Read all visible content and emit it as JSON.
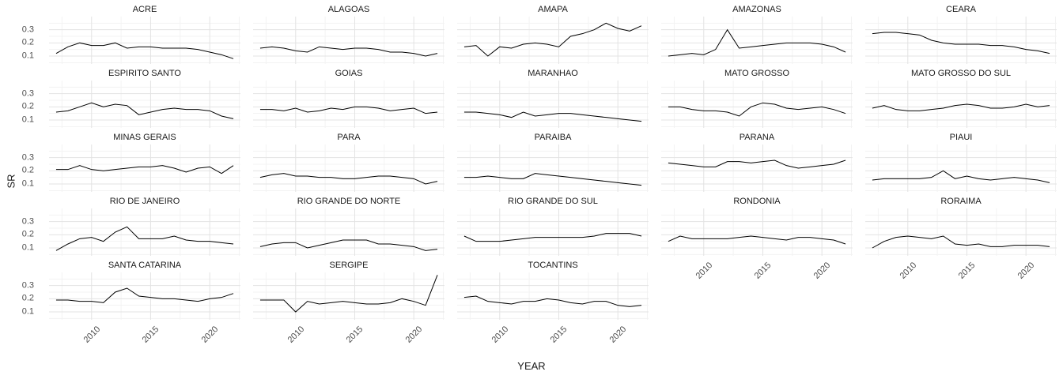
{
  "figure": {
    "y_axis_title": "SR",
    "x_axis_title": "YEAR"
  },
  "axes": {
    "y_tick_labels": [
      "0.3",
      "0.2",
      "0.1"
    ],
    "x_tick_labels": [
      "2010",
      "2015",
      "2020"
    ]
  },
  "chart_data": {
    "type": "line",
    "layout": "facet_wrap, 5 columns, 23 panels, shared axes, minimal theme, thin black line per panel",
    "xlabel": "YEAR",
    "ylabel": "SR",
    "x": [
      2007,
      2008,
      2009,
      2010,
      2011,
      2012,
      2013,
      2014,
      2015,
      2016,
      2017,
      2018,
      2019,
      2020,
      2021,
      2022
    ],
    "xlim": [
      2006.4,
      2022.6
    ],
    "ylim": [
      0.04,
      0.4
    ],
    "x_major_ticks": [
      2010,
      2015,
      2020
    ],
    "y_major_ticks": [
      0.1,
      0.2,
      0.3
    ],
    "x_minor_gridlines": [
      2007.5,
      2012.5,
      2017.5,
      2022.5
    ],
    "y_minor_gridlines": [
      0.05,
      0.15,
      0.25,
      0.35
    ],
    "grid": "major and minor, light gray on white",
    "line_color": "#000000",
    "tick_label_color": "#4d4d4d",
    "series": [
      {
        "name": "ACRE",
        "values": [
          0.12,
          0.17,
          0.2,
          0.18,
          0.18,
          0.2,
          0.16,
          0.17,
          0.17,
          0.16,
          0.16,
          0.16,
          0.15,
          0.13,
          0.11,
          0.08
        ]
      },
      {
        "name": "ALAGOAS",
        "values": [
          0.16,
          0.17,
          0.16,
          0.14,
          0.13,
          0.17,
          0.16,
          0.15,
          0.16,
          0.16,
          0.15,
          0.13,
          0.13,
          0.12,
          0.1,
          0.12
        ]
      },
      {
        "name": "AMAPA",
        "values": [
          0.17,
          0.18,
          0.1,
          0.17,
          0.16,
          0.19,
          0.2,
          0.19,
          0.17,
          0.25,
          0.27,
          0.3,
          0.35,
          0.31,
          0.29,
          0.33
        ]
      },
      {
        "name": "AMAZONAS",
        "values": [
          0.1,
          0.11,
          0.12,
          0.11,
          0.15,
          0.3,
          0.16,
          0.17,
          0.18,
          0.19,
          0.2,
          0.2,
          0.2,
          0.19,
          0.17,
          0.13
        ]
      },
      {
        "name": "CEARA",
        "values": [
          0.27,
          0.28,
          0.28,
          0.27,
          0.26,
          0.22,
          0.2,
          0.19,
          0.19,
          0.19,
          0.18,
          0.18,
          0.17,
          0.15,
          0.14,
          0.12
        ]
      },
      {
        "name": "ESPIRITO SANTO",
        "values": [
          0.16,
          0.17,
          0.2,
          0.23,
          0.2,
          0.22,
          0.21,
          0.14,
          0.16,
          0.18,
          0.19,
          0.18,
          0.18,
          0.17,
          0.13,
          0.11
        ]
      },
      {
        "name": "GOIAS",
        "values": [
          0.18,
          0.18,
          0.17,
          0.19,
          0.16,
          0.17,
          0.19,
          0.18,
          0.2,
          0.2,
          0.19,
          0.17,
          0.18,
          0.19,
          0.15,
          0.16
        ]
      },
      {
        "name": "MARANHAO",
        "values": [
          0.16,
          0.16,
          0.15,
          0.14,
          0.12,
          0.16,
          0.13,
          0.14,
          0.15,
          0.15,
          0.14,
          0.13,
          0.12,
          0.11,
          0.1,
          0.09
        ]
      },
      {
        "name": "MATO GROSSO",
        "values": [
          0.2,
          0.2,
          0.18,
          0.17,
          0.17,
          0.16,
          0.13,
          0.2,
          0.23,
          0.22,
          0.19,
          0.18,
          0.19,
          0.2,
          0.18,
          0.15
        ]
      },
      {
        "name": "MATO GROSSO DO SUL",
        "values": [
          0.19,
          0.21,
          0.18,
          0.17,
          0.17,
          0.18,
          0.19,
          0.21,
          0.22,
          0.21,
          0.19,
          0.19,
          0.2,
          0.22,
          0.2,
          0.21
        ]
      },
      {
        "name": "MINAS GERAIS",
        "values": [
          0.21,
          0.21,
          0.24,
          0.21,
          0.2,
          0.21,
          0.22,
          0.23,
          0.23,
          0.24,
          0.22,
          0.19,
          0.22,
          0.23,
          0.18,
          0.24
        ]
      },
      {
        "name": "PARA",
        "values": [
          0.15,
          0.17,
          0.18,
          0.16,
          0.16,
          0.15,
          0.15,
          0.14,
          0.14,
          0.15,
          0.16,
          0.16,
          0.15,
          0.14,
          0.1,
          0.12
        ]
      },
      {
        "name": "PARAIBA",
        "values": [
          0.15,
          0.15,
          0.16,
          0.15,
          0.14,
          0.14,
          0.18,
          0.17,
          0.16,
          0.15,
          0.14,
          0.13,
          0.12,
          0.11,
          0.1,
          0.09
        ]
      },
      {
        "name": "PARANA",
        "values": [
          0.26,
          0.25,
          0.24,
          0.23,
          0.23,
          0.27,
          0.27,
          0.26,
          0.27,
          0.28,
          0.24,
          0.22,
          0.23,
          0.24,
          0.25,
          0.28
        ]
      },
      {
        "name": "PIAUI",
        "values": [
          0.13,
          0.14,
          0.14,
          0.14,
          0.14,
          0.15,
          0.2,
          0.14,
          0.16,
          0.14,
          0.13,
          0.14,
          0.15,
          0.14,
          0.13,
          0.11
        ]
      },
      {
        "name": "RIO DE JANEIRO",
        "values": [
          0.08,
          0.13,
          0.17,
          0.18,
          0.15,
          0.22,
          0.26,
          0.17,
          0.17,
          0.17,
          0.19,
          0.16,
          0.15,
          0.15,
          0.14,
          0.13
        ]
      },
      {
        "name": "RIO GRANDE DO NORTE",
        "values": [
          0.11,
          0.13,
          0.14,
          0.14,
          0.1,
          0.12,
          0.14,
          0.16,
          0.16,
          0.16,
          0.13,
          0.13,
          0.12,
          0.11,
          0.08,
          0.09
        ]
      },
      {
        "name": "RIO GRANDE DO SUL",
        "values": [
          0.19,
          0.15,
          0.15,
          0.15,
          0.16,
          0.17,
          0.18,
          0.18,
          0.18,
          0.18,
          0.18,
          0.19,
          0.21,
          0.21,
          0.21,
          0.19
        ]
      },
      {
        "name": "RONDONIA",
        "values": [
          0.15,
          0.19,
          0.17,
          0.17,
          0.17,
          0.17,
          0.18,
          0.19,
          0.18,
          0.17,
          0.16,
          0.18,
          0.18,
          0.17,
          0.16,
          0.13
        ]
      },
      {
        "name": "RORAIMA",
        "values": [
          0.1,
          0.15,
          0.18,
          0.19,
          0.18,
          0.17,
          0.19,
          0.13,
          0.12,
          0.13,
          0.11,
          0.11,
          0.12,
          0.12,
          0.12,
          0.11
        ]
      },
      {
        "name": "SANTA CATARINA",
        "values": [
          0.19,
          0.19,
          0.18,
          0.18,
          0.17,
          0.25,
          0.28,
          0.22,
          0.21,
          0.2,
          0.2,
          0.19,
          0.18,
          0.2,
          0.21,
          0.24
        ]
      },
      {
        "name": "SERGIPE",
        "values": [
          0.19,
          0.19,
          0.19,
          0.1,
          0.18,
          0.16,
          0.17,
          0.18,
          0.17,
          0.16,
          0.16,
          0.17,
          0.2,
          0.18,
          0.15,
          0.38
        ]
      },
      {
        "name": "TOCANTINS",
        "values": [
          0.21,
          0.22,
          0.18,
          0.17,
          0.16,
          0.18,
          0.18,
          0.2,
          0.19,
          0.17,
          0.16,
          0.18,
          0.18,
          0.15,
          0.14,
          0.15
        ]
      }
    ]
  }
}
